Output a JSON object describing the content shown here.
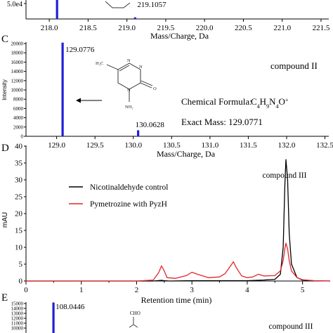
{
  "chart_data": [
    {
      "id": "B",
      "type": "bar",
      "panel_letter": "",
      "title": "",
      "xlabel": "Mass/Charge, Da",
      "ylabel": "",
      "xlim": [
        217.7,
        221.6
      ],
      "ylim": [
        0,
        60000
      ],
      "xticks": [
        "218.0",
        "218.5",
        "219.0",
        "219.5",
        "220.0",
        "220.5",
        "221.0",
        "221.5"
      ],
      "yticks": [
        "5.0e4"
      ],
      "peaks": [
        {
          "x": 218.1,
          "y": 140000,
          "label": ""
        },
        {
          "x": 219.1057,
          "y": 9000,
          "label": "219.1057"
        }
      ],
      "color": "#1f1fd8"
    },
    {
      "id": "C",
      "type": "bar",
      "panel_letter": "C",
      "title": "compound II",
      "xlabel": "Mass/Charge, Da",
      "ylabel": "Intensity",
      "xlim": [
        128.6,
        132.55
      ],
      "ylim": [
        0,
        20500
      ],
      "xticks": [
        "129.0",
        "129.5",
        "130.0",
        "130.5",
        "131.0",
        "131.5",
        "132.0",
        "132.5"
      ],
      "yticks": [
        "0",
        "2000",
        "4000",
        "6000",
        "8000",
        "10000",
        "12000",
        "14000",
        "16000",
        "18000",
        "20000"
      ],
      "peaks": [
        {
          "x": 129.0776,
          "y": 20200,
          "label": "129.0776"
        },
        {
          "x": 130.0628,
          "y": 1300,
          "label": "130.0628"
        }
      ],
      "formula_label": "Chemical Formula: ",
      "formula_value": "C4H9N4O+",
      "mass_label": "Exact Mass: 129.0771",
      "color": "#1f1fd8"
    },
    {
      "id": "D",
      "type": "line",
      "panel_letter": "D",
      "title": "",
      "xlabel": "Retention time (min)",
      "ylabel": "mAU",
      "xlim": [
        0,
        5.5
      ],
      "ylim": [
        0,
        40
      ],
      "xticks": [
        "0",
        "1",
        "2",
        "3",
        "4",
        "5"
      ],
      "yticks": [
        "0",
        "5",
        "10",
        "15",
        "20",
        "25",
        "30",
        "35",
        "40"
      ],
      "annotation": "compound III",
      "series": [
        {
          "name": "Nicotinaldehyde control",
          "color": "#000000",
          "x": [
            0,
            0.5,
            1.0,
            1.5,
            2.0,
            2.3,
            2.45,
            2.5,
            2.6,
            3.0,
            3.5,
            3.8,
            4.0,
            4.3,
            4.5,
            4.6,
            4.65,
            4.68,
            4.7,
            4.73,
            4.76,
            4.8,
            4.9,
            5.0,
            5.2,
            5.5
          ],
          "y": [
            0,
            0,
            0,
            0,
            0,
            0,
            0.2,
            0.1,
            0,
            0.1,
            0.1,
            0.1,
            0.1,
            0.3,
            0.5,
            2,
            10,
            28,
            36,
            30,
            14,
            5,
            1,
            0.3,
            0.1,
            0
          ]
        },
        {
          "name": "Pymetrozine with PyzH",
          "color": "#e3262b",
          "x": [
            0,
            0.5,
            1.0,
            1.5,
            2.0,
            2.3,
            2.4,
            2.45,
            2.5,
            2.55,
            2.7,
            2.9,
            3.0,
            3.1,
            3.3,
            3.5,
            3.6,
            3.7,
            3.75,
            3.8,
            3.9,
            4.0,
            4.1,
            4.2,
            4.3,
            4.5,
            4.6,
            4.65,
            4.68,
            4.7,
            4.73,
            4.76,
            4.8,
            4.9,
            5.0,
            5.2,
            5.5
          ],
          "y": [
            0,
            0,
            0,
            0,
            0,
            0.3,
            2.5,
            4.5,
            3.0,
            1.0,
            0.8,
            1.6,
            2.6,
            2.0,
            1.0,
            1.2,
            2.2,
            4.5,
            5.7,
            4.0,
            1.5,
            1.0,
            1.2,
            2.0,
            1.5,
            1.6,
            3.0,
            6.0,
            9.5,
            11.2,
            9.5,
            6.0,
            3.0,
            1.0,
            0.4,
            0.1,
            0
          ]
        }
      ]
    },
    {
      "id": "E",
      "type": "bar",
      "panel_letter": "E",
      "title": "compound III",
      "xlabel": "",
      "ylabel": "",
      "xlim": [
        107.7,
        111.5
      ],
      "ylim": [
        0,
        15500
      ],
      "yticks": [
        "10000",
        "11000",
        "12000",
        "13000",
        "14000",
        "15000"
      ],
      "peaks": [
        {
          "x": 108.0446,
          "y": 15200,
          "label": "108.0446"
        }
      ],
      "structure_label": "CHO",
      "color": "#1f1fd8"
    }
  ]
}
